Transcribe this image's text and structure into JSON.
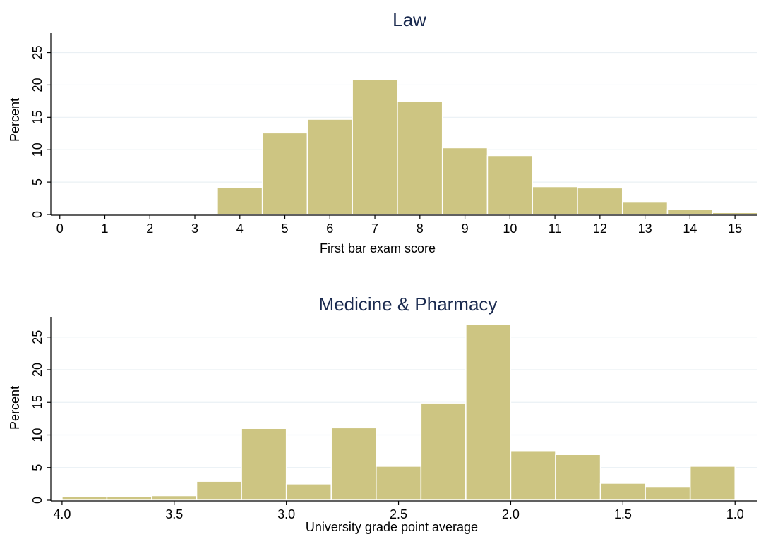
{
  "colors": {
    "bar_fill": "#cdc582",
    "bar_stroke": "#ffffff",
    "grid": "#eaf0f4",
    "title": "#1a2a4f"
  },
  "chart_data": [
    {
      "type": "bar",
      "title": "Law",
      "xlabel": "First bar exam score",
      "ylabel": "Percent",
      "xlim": [
        -0.2,
        15.5
      ],
      "ylim": [
        0,
        28
      ],
      "xticks": [
        "0",
        "1",
        "2",
        "3",
        "4",
        "5",
        "6",
        "7",
        "8",
        "9",
        "10",
        "11",
        "12",
        "13",
        "14",
        "15"
      ],
      "yticks": [
        "0",
        "5",
        "10",
        "15",
        "20",
        "25"
      ],
      "grid": true,
      "bars": [
        {
          "x0": 3.5,
          "x1": 4.5,
          "value": 4.2
        },
        {
          "x0": 4.5,
          "x1": 5.5,
          "value": 12.6
        },
        {
          "x0": 5.5,
          "x1": 6.5,
          "value": 14.7
        },
        {
          "x0": 6.5,
          "x1": 7.5,
          "value": 20.8
        },
        {
          "x0": 7.5,
          "x1": 8.5,
          "value": 17.5
        },
        {
          "x0": 8.5,
          "x1": 9.5,
          "value": 10.3
        },
        {
          "x0": 9.5,
          "x1": 10.5,
          "value": 9.1
        },
        {
          "x0": 10.5,
          "x1": 11.5,
          "value": 4.3
        },
        {
          "x0": 11.5,
          "x1": 12.5,
          "value": 4.1
        },
        {
          "x0": 12.5,
          "x1": 13.5,
          "value": 1.9
        },
        {
          "x0": 13.5,
          "x1": 14.5,
          "value": 0.8
        },
        {
          "x0": 14.5,
          "x1": 15.5,
          "value": 0.3
        }
      ]
    },
    {
      "type": "bar",
      "title": "Medicine & Pharmacy",
      "xlabel": "University grade point average",
      "ylabel": "Percent",
      "xlim": [
        4.05,
        0.9
      ],
      "ylim": [
        0,
        28
      ],
      "xticks": [
        "4.0",
        "3.5",
        "3.0",
        "2.5",
        "2.0",
        "1.5",
        "1.0"
      ],
      "yticks": [
        "0",
        "5",
        "10",
        "15",
        "20",
        "25"
      ],
      "grid": true,
      "bars": [
        {
          "x0": 4.0,
          "x1": 3.8,
          "value": 0.6
        },
        {
          "x0": 3.8,
          "x1": 3.6,
          "value": 0.6
        },
        {
          "x0": 3.6,
          "x1": 3.4,
          "value": 0.7
        },
        {
          "x0": 3.4,
          "x1": 3.2,
          "value": 2.9
        },
        {
          "x0": 3.2,
          "x1": 3.0,
          "value": 11.0
        },
        {
          "x0": 3.0,
          "x1": 2.8,
          "value": 2.5
        },
        {
          "x0": 2.8,
          "x1": 2.6,
          "value": 11.1
        },
        {
          "x0": 2.6,
          "x1": 2.4,
          "value": 5.2
        },
        {
          "x0": 2.4,
          "x1": 2.2,
          "value": 14.9
        },
        {
          "x0": 2.2,
          "x1": 2.0,
          "value": 27.0
        },
        {
          "x0": 2.0,
          "x1": 1.8,
          "value": 7.6
        },
        {
          "x0": 1.8,
          "x1": 1.6,
          "value": 7.0
        },
        {
          "x0": 1.6,
          "x1": 1.4,
          "value": 2.6
        },
        {
          "x0": 1.4,
          "x1": 1.2,
          "value": 2.0
        },
        {
          "x0": 1.2,
          "x1": 1.0,
          "value": 5.2
        }
      ]
    }
  ]
}
